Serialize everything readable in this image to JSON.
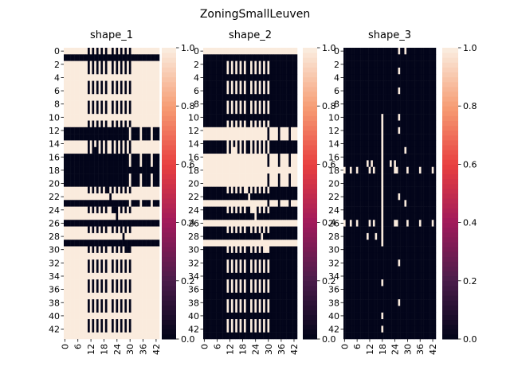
{
  "title": "ZoningSmallLeuven",
  "chart_data": [
    {
      "type": "heatmap",
      "title": "shape_1",
      "rows": 44,
      "cols": 44,
      "ytick_labels": [
        "0",
        "2",
        "4",
        "6",
        "8",
        "10",
        "12",
        "14",
        "16",
        "18",
        "20",
        "22",
        "24",
        "26",
        "28",
        "30",
        "32",
        "34",
        "36",
        "38",
        "40",
        "42"
      ],
      "xtick_labels": [
        "0",
        "6",
        "12",
        "18",
        "24",
        "30",
        "36",
        "42"
      ],
      "vmin": 0.0,
      "vmax": 1.0,
      "colorbar_ticks": [
        "0.0",
        "0.2",
        "0.4",
        "0.6",
        "0.8",
        "1.0"
      ],
      "colormap": [
        "#03051a",
        "#4c1d4b",
        "#a11a5b",
        "#e83f3f",
        "#f69c73",
        "#faebdd"
      ],
      "default_value": 1,
      "full_rows_value_0": [
        1,
        18,
        26,
        29
      ],
      "mostly_dark_rows": [
        12,
        13,
        16,
        17,
        19,
        20,
        23
      ],
      "dark_columns_in_light_rows": [
        11,
        13,
        15,
        17,
        19,
        22,
        24,
        26,
        28,
        30
      ],
      "diagonal_dark_from_row_12_to_30": true
    },
    {
      "type": "heatmap",
      "title": "shape_2",
      "rows": 44,
      "cols": 44,
      "ytick_labels": [
        "0",
        "2",
        "4",
        "6",
        "8",
        "10",
        "12",
        "14",
        "16",
        "18",
        "20",
        "22",
        "24",
        "26",
        "28",
        "30",
        "32",
        "34",
        "36",
        "38",
        "40",
        "42"
      ],
      "xtick_labels": [
        "0",
        "6",
        "12",
        "18",
        "24",
        "30",
        "36",
        "42"
      ],
      "vmin": 0.0,
      "vmax": 1.0,
      "colorbar_ticks": [
        "0.0",
        "0.2",
        "0.4",
        "0.6",
        "0.8",
        "1.0"
      ],
      "colormap": [
        "#03051a",
        "#4c1d4b",
        "#a11a5b",
        "#e83f3f",
        "#f69c73",
        "#faebdd"
      ],
      "default_value": 0,
      "full_rows_value_1": [
        0,
        18,
        26,
        29
      ],
      "mostly_light_rows": [
        12,
        13,
        16,
        17,
        19,
        20,
        23
      ],
      "light_columns": [
        11,
        13,
        15,
        17,
        19,
        22,
        24,
        26,
        28,
        30
      ],
      "diagonal_light_from_row_12_to_30": true
    },
    {
      "type": "heatmap",
      "title": "shape_3",
      "rows": 44,
      "cols": 44,
      "ytick_labels": [
        "0",
        "2",
        "4",
        "6",
        "8",
        "10",
        "12",
        "14",
        "16",
        "18",
        "20",
        "22",
        "24",
        "26",
        "28",
        "30",
        "32",
        "34",
        "36",
        "38",
        "40",
        "42"
      ],
      "xtick_labels": [
        "0",
        "6",
        "12",
        "18",
        "24",
        "30",
        "36",
        "42"
      ],
      "vmin": 0.0,
      "vmax": 1.0,
      "colorbar_ticks": [
        "0.0",
        "0.2",
        "0.4",
        "0.6",
        "0.8",
        "1.0"
      ],
      "colormap": [
        "#03051a",
        "#4c1d4b",
        "#a11a5b",
        "#e83f3f",
        "#f69c73",
        "#faebdd"
      ],
      "default_value": 0,
      "value_1_column": 18,
      "value_1_rows_in_column": [
        10,
        11,
        12,
        13,
        14,
        15,
        16,
        17,
        18,
        19,
        20,
        21,
        22,
        23,
        24,
        25,
        26,
        27,
        28,
        29,
        42
      ],
      "value_1_rows_sparse": [
        18,
        26
      ]
    }
  ]
}
